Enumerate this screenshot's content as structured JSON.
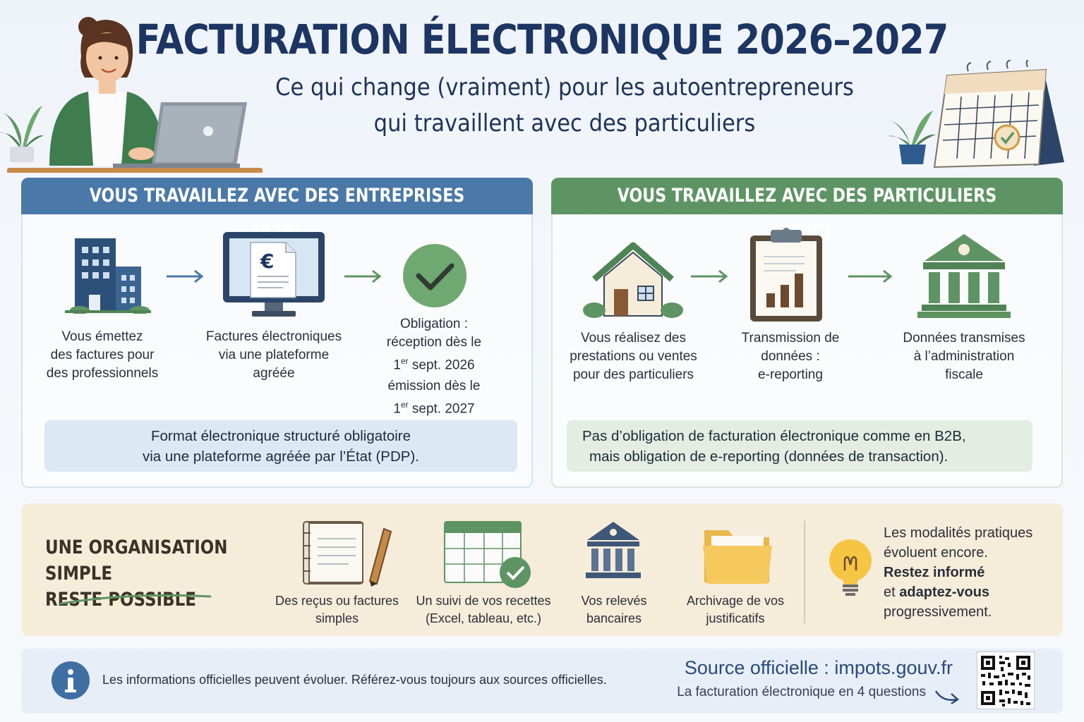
{
  "header": {
    "title": "FACTURATION ÉLECTRONIQUE 2026–2027",
    "subtitle_line1": "Ce qui change (vraiment) pour les autoentrepreneurs",
    "subtitle_line2": "qui travaillent avec des particuliers"
  },
  "b2b": {
    "heading": "VOUS TRAVAILLEZ AVEC DES ENTREPRISES (B2B)",
    "steps": [
      {
        "lines": [
          "Vous émettez",
          "des factures pour",
          "des professionnels"
        ],
        "icon": "office-building-icon"
      },
      {
        "lines": [
          "Factures électroniques",
          "via une plateforme",
          "agréée"
        ],
        "icon": "monitor-euro-invoice-icon"
      },
      {
        "lines": [
          "Obligation :",
          "réception dès le"
        ],
        "icon": "check-circle-icon"
      }
    ],
    "date1_sup": "er",
    "date1_num": "1",
    "date1_rest": " sept. 2026",
    "emission_label": "émission dès le",
    "date2_num": "1",
    "date2_sup": "er",
    "date2_rest": " sept. 2027",
    "note_line1": "Format électronique structuré obligatoire",
    "note_line2": "via une plateforme agréée par l’État (PDP)."
  },
  "b2c": {
    "heading": "VOUS TRAVAILLEZ AVEC DES PARTICULIERS (B2C)",
    "steps": [
      {
        "lines": [
          "Vous réalisez des",
          "prestations ou ventes",
          "pour des particuliers"
        ],
        "icon": "house-icon"
      },
      {
        "lines": [
          "Transmission de",
          "données :",
          "e-reporting"
        ],
        "icon": "clipboard-chart-icon"
      },
      {
        "lines": [
          "Données transmises",
          "à l’administration",
          "fiscale"
        ],
        "icon": "government-building-icon"
      }
    ],
    "note_line1": "Pas d’obligation de facturation électronique comme en B2B,",
    "note_line2": "mais obligation de e-reporting (données de transaction)."
  },
  "organisation": {
    "title_line1": "UNE ORGANISATION SIMPLE",
    "title_line2": "RESTE POSSIBLE",
    "tools": [
      {
        "lines": [
          "Des reçus ou factures",
          "simples"
        ],
        "icon": "notebook-pen-icon"
      },
      {
        "lines": [
          "Un suivi de vos recettes",
          "(Excel, tableau, etc.)"
        ],
        "icon": "spreadsheet-check-icon"
      },
      {
        "lines": [
          "Vos relevés",
          "bancaires"
        ],
        "icon": "bank-icon"
      },
      {
        "lines": [
          "Archivage de vos",
          "justificatifs"
        ],
        "icon": "folder-icon"
      }
    ],
    "tip_line1": "Les modalités pratiques",
    "tip_line2": "évoluent encore.",
    "tip_line3": "Restez informé",
    "tip_line4_prefix": "et ",
    "tip_line4_bold": "adaptez-vous",
    "tip_line5": "progressivement."
  },
  "footer": {
    "info_text": "Les informations officielles peuvent évoluer. Référez-vous toujours aux sources officielles.",
    "source_label": "Source officielle : impots.gouv.fr",
    "source_sub": "La facturation électronique en 4 questions"
  },
  "colors": {
    "navy": "#1c3563",
    "blue": "#4a78a8",
    "green": "#5e9463",
    "cream": "#f6ecda"
  }
}
